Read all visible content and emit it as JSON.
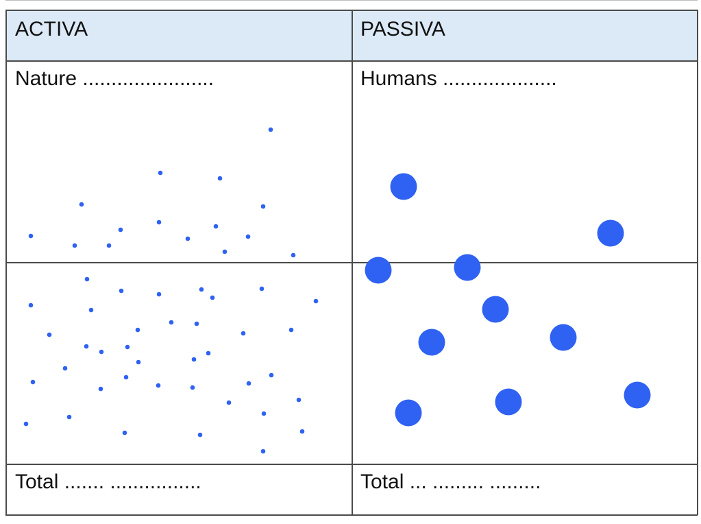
{
  "table": {
    "col_left_header": "ACTIVA",
    "col_right_header": "PASSIVA",
    "left_label": "Nature .......................",
    "right_label": "Humans ....................",
    "left_total": "Total ....... ................",
    "right_total": "Total ... ......... ........."
  },
  "colors": {
    "header_bg": "#dce9f6",
    "dot": "#2f62f2",
    "grid_line": "#4a4a4a"
  }
}
